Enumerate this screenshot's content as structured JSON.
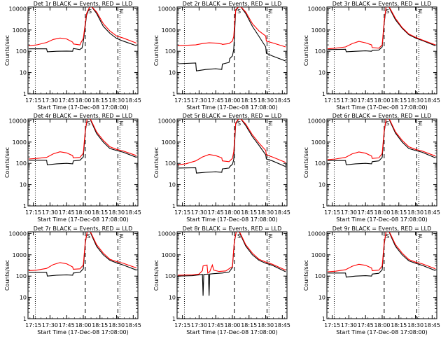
{
  "x_ticks": [
    "17:15",
    "17:30",
    "17:45",
    "18:00",
    "18:15",
    "18:30",
    "18:45"
  ],
  "x_tick_hours": [
    0.25,
    0.5,
    0.75,
    1.0,
    1.25,
    1.5,
    1.75
  ],
  "xlim_hours": [
    0.17,
    1.82
  ],
  "y_ticks": [
    "1",
    "10",
    "100",
    "1000",
    "10000"
  ],
  "y_tick_values": [
    1,
    10,
    100,
    1000,
    10000
  ],
  "ylim": [
    1,
    12000
  ],
  "ylabel": "Counts/sec",
  "xlabel": "Start Time (17-Dec-08 17:08:00)",
  "colors": {
    "events": "#000000",
    "lld": "#ff0000"
  },
  "chart_data": [
    {
      "type": "line",
      "title": "Det 1r BLACK = Events, RED = LLD",
      "markers": {
        "dotted": [
          0.28,
          1.55
        ],
        "dashed": [
          1.03,
          1.52
        ],
        "labels": [
          {
            "text": "S",
            "at": 1.1
          },
          {
            "text": "E",
            "at": 1.58
          }
        ]
      },
      "series": [
        {
          "name": "Events",
          "x": [
            0.18,
            0.45,
            0.46,
            0.6,
            0.75,
            0.84,
            0.85,
            0.95,
            0.96,
            0.98,
            1.0,
            1.05,
            1.1,
            1.12,
            1.2,
            1.3,
            1.4,
            1.5,
            1.6,
            1.8
          ],
          "values": [
            130,
            130,
            95,
            100,
            102,
            100,
            135,
            120,
            130,
            140,
            280,
            5000,
            13000,
            13000,
            6000,
            1500,
            700,
            400,
            300,
            180
          ]
        },
        {
          "name": "LLD",
          "x": [
            0.18,
            0.3,
            0.45,
            0.55,
            0.65,
            0.75,
            0.84,
            0.85,
            0.95,
            0.96,
            1.0,
            1.05,
            1.1,
            1.12,
            1.2,
            1.3,
            1.4,
            1.5,
            1.6,
            1.8
          ],
          "values": [
            180,
            200,
            260,
            360,
            420,
            380,
            270,
            220,
            200,
            240,
            400,
            6000,
            13000,
            13000,
            7000,
            2000,
            900,
            520,
            420,
            240
          ]
        }
      ]
    },
    {
      "type": "line",
      "title": "Det 2r BLACK = Events, RED = LLD",
      "markers": {
        "dotted": [
          0.28,
          1.55
        ],
        "dashed": [
          1.03,
          1.52
        ],
        "labels": [
          {
            "text": "S",
            "at": 1.1
          },
          {
            "text": "E",
            "at": 1.58
          }
        ]
      },
      "series": [
        {
          "name": "Events",
          "x": [
            0.18,
            0.45,
            0.46,
            0.6,
            0.75,
            0.84,
            0.85,
            0.95,
            0.96,
            1.0,
            1.02,
            1.05,
            1.1,
            1.12,
            1.2,
            1.3,
            1.4,
            1.5,
            1.51,
            1.6,
            1.8
          ],
          "values": [
            26,
            28,
            12,
            14,
            15,
            14,
            25,
            30,
            45,
            60,
            120,
            8000,
            13000,
            13000,
            6000,
            1500,
            500,
            160,
            80,
            60,
            35
          ]
        },
        {
          "name": "LLD",
          "x": [
            0.18,
            0.3,
            0.45,
            0.55,
            0.65,
            0.75,
            0.84,
            0.85,
            0.95,
            1.0,
            1.02,
            1.05,
            1.1,
            1.12,
            1.2,
            1.3,
            1.4,
            1.5,
            1.51,
            1.6,
            1.8
          ],
          "values": [
            185,
            190,
            200,
            230,
            250,
            240,
            220,
            210,
            230,
            300,
            500,
            9000,
            13000,
            13000,
            7000,
            2000,
            900,
            520,
            300,
            250,
            160
          ]
        }
      ]
    },
    {
      "type": "line",
      "title": "Det 3r BLACK = Events, RED = LLD",
      "markers": {
        "dotted": [
          0.28,
          1.55
        ],
        "dashed": [
          1.03,
          1.52
        ],
        "labels": [
          {
            "text": "S",
            "at": 1.08
          },
          {
            "text": "E",
            "at": 1.58
          }
        ]
      },
      "series": [
        {
          "name": "Events",
          "x": [
            0.18,
            0.45,
            0.46,
            0.6,
            0.75,
            0.84,
            0.85,
            0.95,
            1.0,
            1.03,
            1.06,
            1.1,
            1.12,
            1.2,
            1.3,
            1.4,
            1.5,
            1.6,
            1.8
          ],
          "values": [
            120,
            125,
            95,
            100,
            105,
            100,
            110,
            115,
            160,
            2000,
            13000,
            13000,
            9000,
            3000,
            1200,
            600,
            420,
            320,
            180
          ]
        },
        {
          "name": "LLD",
          "x": [
            0.18,
            0.3,
            0.45,
            0.55,
            0.65,
            0.75,
            0.84,
            0.85,
            0.95,
            1.0,
            1.03,
            1.06,
            1.1,
            1.12,
            1.2,
            1.3,
            1.4,
            1.5,
            1.6,
            1.8
          ],
          "values": [
            130,
            140,
            160,
            230,
            290,
            250,
            200,
            150,
            140,
            200,
            2500,
            13000,
            13000,
            10000,
            3500,
            1300,
            650,
            450,
            340,
            200
          ]
        }
      ]
    },
    {
      "type": "line",
      "title": "Det 4r BLACK = Events, RED = LLD",
      "markers": {
        "dotted": [
          0.28,
          1.55
        ],
        "dashed": [
          1.03,
          1.52
        ],
        "labels": [
          {
            "text": "S",
            "at": 1.08
          },
          {
            "text": "E",
            "at": 1.58
          }
        ]
      },
      "series": [
        {
          "name": "Events",
          "x": [
            0.18,
            0.45,
            0.46,
            0.6,
            0.75,
            0.84,
            0.85,
            0.95,
            1.0,
            1.03,
            1.06,
            1.1,
            1.12,
            1.2,
            1.3,
            1.4,
            1.5,
            1.6,
            1.8
          ],
          "values": [
            140,
            140,
            85,
            95,
            100,
            95,
            130,
            140,
            200,
            3000,
            13000,
            13000,
            9000,
            2500,
            1000,
            500,
            400,
            330,
            190
          ]
        },
        {
          "name": "LLD",
          "x": [
            0.18,
            0.3,
            0.45,
            0.55,
            0.65,
            0.75,
            0.84,
            0.85,
            0.95,
            1.0,
            1.03,
            1.06,
            1.1,
            1.12,
            1.2,
            1.3,
            1.4,
            1.5,
            1.6,
            1.8
          ],
          "values": [
            160,
            170,
            190,
            280,
            350,
            310,
            230,
            180,
            190,
            300,
            3500,
            13000,
            13000,
            10000,
            3000,
            1200,
            600,
            450,
            380,
            230
          ]
        }
      ]
    },
    {
      "type": "line",
      "title": "Det 5r BLACK = Events, RED = LLD",
      "markers": {
        "dotted": [
          0.28,
          1.55
        ],
        "dashed": [
          1.03,
          1.52
        ],
        "labels": [
          {
            "text": "S",
            "at": 1.1
          },
          {
            "text": "E",
            "at": 1.58
          }
        ]
      },
      "series": [
        {
          "name": "Events",
          "x": [
            0.18,
            0.45,
            0.46,
            0.6,
            0.75,
            0.84,
            0.85,
            0.95,
            0.96,
            1.0,
            1.02,
            1.05,
            1.1,
            1.12,
            1.2,
            1.3,
            1.4,
            1.5,
            1.51,
            1.6,
            1.8
          ],
          "values": [
            60,
            62,
            35,
            38,
            40,
            38,
            55,
            60,
            70,
            90,
            150,
            7000,
            13000,
            13000,
            6000,
            1800,
            700,
            250,
            160,
            130,
            70
          ]
        },
        {
          "name": "LLD",
          "x": [
            0.18,
            0.3,
            0.45,
            0.55,
            0.65,
            0.75,
            0.84,
            0.85,
            0.95,
            1.0,
            1.02,
            1.05,
            1.1,
            1.12,
            1.2,
            1.3,
            1.4,
            1.5,
            1.51,
            1.6,
            1.8
          ],
          "values": [
            85,
            95,
            130,
            200,
            260,
            230,
            180,
            130,
            120,
            170,
            350,
            8000,
            13000,
            13000,
            7000,
            2200,
            900,
            400,
            250,
            200,
            110
          ]
        }
      ]
    },
    {
      "type": "line",
      "title": "Det 6r BLACK = Events, RED = LLD",
      "markers": {
        "dotted": [
          0.28,
          1.55
        ],
        "dashed": [
          1.03,
          1.52
        ],
        "labels": [
          {
            "text": "S",
            "at": 1.08
          },
          {
            "text": "E",
            "at": 1.58
          }
        ]
      },
      "series": [
        {
          "name": "Events",
          "x": [
            0.18,
            0.45,
            0.46,
            0.6,
            0.75,
            0.84,
            0.85,
            0.95,
            1.0,
            1.03,
            1.06,
            1.1,
            1.12,
            1.2,
            1.3,
            1.4,
            1.5,
            1.6,
            1.8
          ],
          "values": [
            135,
            135,
            85,
            95,
            100,
            95,
            120,
            130,
            190,
            2800,
            13000,
            13000,
            9000,
            2600,
            1000,
            500,
            400,
            330,
            180
          ]
        },
        {
          "name": "LLD",
          "x": [
            0.18,
            0.3,
            0.45,
            0.55,
            0.65,
            0.75,
            0.84,
            0.85,
            0.95,
            1.0,
            1.03,
            1.06,
            1.1,
            1.12,
            1.2,
            1.3,
            1.4,
            1.5,
            1.6,
            1.8
          ],
          "values": [
            150,
            160,
            190,
            280,
            340,
            300,
            220,
            170,
            180,
            290,
            3300,
            13000,
            13000,
            10000,
            3000,
            1200,
            600,
            450,
            380,
            220
          ]
        }
      ]
    },
    {
      "type": "line",
      "title": "Det 7r BLACK = Events, RED = LLD",
      "markers": {
        "dotted": [
          0.28,
          1.55
        ],
        "dashed": [
          1.03,
          1.52
        ],
        "labels": [
          {
            "text": "S",
            "at": 1.08
          },
          {
            "text": "E",
            "at": 1.58
          }
        ]
      },
      "series": [
        {
          "name": "Events",
          "x": [
            0.18,
            0.45,
            0.46,
            0.6,
            0.75,
            0.84,
            0.85,
            0.95,
            1.0,
            1.03,
            1.06,
            1.1,
            1.12,
            1.2,
            1.3,
            1.4,
            1.5,
            1.6,
            1.8
          ],
          "values": [
            150,
            150,
            100,
            110,
            115,
            110,
            140,
            150,
            220,
            3500,
            13000,
            13000,
            9000,
            2500,
            1000,
            550,
            420,
            330,
            190
          ]
        },
        {
          "name": "LLD",
          "x": [
            0.18,
            0.3,
            0.45,
            0.55,
            0.65,
            0.75,
            0.84,
            0.85,
            0.95,
            1.0,
            1.03,
            1.06,
            1.1,
            1.12,
            1.2,
            1.3,
            1.4,
            1.5,
            1.6,
            1.8
          ],
          "values": [
            180,
            190,
            230,
            350,
            430,
            380,
            270,
            210,
            220,
            330,
            4000,
            13000,
            13000,
            10000,
            3000,
            1200,
            620,
            480,
            400,
            240
          ]
        }
      ]
    },
    {
      "type": "line",
      "title": "Det 8r BLACK = Events, RED = LLD",
      "markers": {
        "dotted": [
          0.28,
          1.55
        ],
        "dashed": [
          1.03,
          1.52
        ],
        "labels": [
          {
            "text": "S",
            "at": 1.1
          },
          {
            "text": "E",
            "at": 1.58
          }
        ]
      },
      "series": [
        {
          "name": "Events",
          "x": [
            0.18,
            0.4,
            0.5,
            0.55,
            0.56,
            0.57,
            0.64,
            0.65,
            0.66,
            0.72,
            0.85,
            0.95,
            1.0,
            1.03,
            1.06,
            1.1,
            1.12,
            1.2,
            1.3,
            1.4,
            1.5,
            1.6,
            1.8
          ],
          "values": [
            100,
            105,
            115,
            120,
            12,
            120,
            125,
            12,
            125,
            130,
            140,
            155,
            250,
            4000,
            13000,
            13000,
            9000,
            2600,
            1000,
            550,
            400,
            320,
            160
          ]
        },
        {
          "name": "LLD",
          "x": [
            0.18,
            0.4,
            0.5,
            0.55,
            0.56,
            0.6,
            0.62,
            0.63,
            0.66,
            0.7,
            0.72,
            0.8,
            0.9,
            1.0,
            1.03,
            1.06,
            1.1,
            1.12,
            1.2,
            1.3,
            1.4,
            1.5,
            1.6,
            1.8
          ],
          "values": [
            110,
            115,
            125,
            180,
            300,
            320,
            330,
            140,
            160,
            330,
            190,
            165,
            175,
            280,
            4500,
            13000,
            13000,
            10000,
            3000,
            1200,
            620,
            460,
            360,
            190
          ]
        }
      ]
    },
    {
      "type": "line",
      "title": "Det 9r BLACK = Events, RED = LLD",
      "markers": {
        "dotted": [
          0.28,
          1.55
        ],
        "dashed": [
          1.03,
          1.52
        ],
        "labels": [
          {
            "text": "S",
            "at": 1.08
          },
          {
            "text": "E",
            "at": 1.58
          }
        ]
      },
      "series": [
        {
          "name": "Events",
          "x": [
            0.18,
            0.45,
            0.46,
            0.6,
            0.75,
            0.84,
            0.85,
            0.95,
            1.0,
            1.03,
            1.06,
            1.1,
            1.12,
            1.2,
            1.3,
            1.4,
            1.5,
            1.6,
            1.8
          ],
          "values": [
            140,
            140,
            90,
            100,
            105,
            100,
            125,
            135,
            200,
            3000,
            13000,
            13000,
            9000,
            2500,
            1000,
            520,
            400,
            320,
            180
          ]
        },
        {
          "name": "LLD",
          "x": [
            0.18,
            0.3,
            0.45,
            0.55,
            0.65,
            0.75,
            0.84,
            0.85,
            0.95,
            1.0,
            1.03,
            1.06,
            1.1,
            1.12,
            1.2,
            1.3,
            1.4,
            1.5,
            1.6,
            1.8
          ],
          "values": [
            160,
            170,
            200,
            290,
            360,
            320,
            240,
            180,
            190,
            300,
            3600,
            13000,
            13000,
            10000,
            3000,
            1200,
            600,
            450,
            380,
            220
          ]
        }
      ]
    }
  ]
}
